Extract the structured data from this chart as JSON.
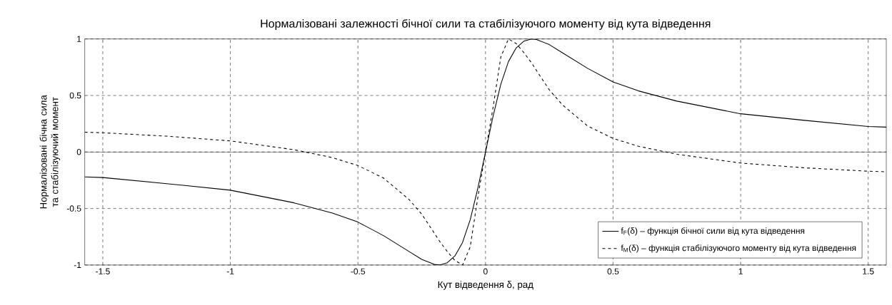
{
  "chart_data": {
    "type": "line",
    "title": "Нормалізовані залежності бічної сили та стабілізуючого моменту від кута відведення",
    "xlabel": "Кут відведення δ, рад",
    "ylabel": "Нормалізовані бічна сила та стабілізуючий момент",
    "x": [
      -1.5708,
      -1.5,
      -1.25,
      -1,
      -0.75,
      -0.6,
      -0.5,
      -0.4,
      -0.3,
      -0.25,
      -0.2,
      -0.18,
      -0.15,
      -0.12,
      -0.09,
      -0.06,
      -0.03,
      0,
      0.03,
      0.06,
      0.09,
      0.12,
      0.15,
      0.18,
      0.2,
      0.25,
      0.3,
      0.4,
      0.5,
      0.6,
      0.75,
      1,
      1.25,
      1.5,
      1.5708
    ],
    "series": [
      {
        "name": "f$_{F}$(δ) – функція бічної сили від кута відведення",
        "color": "#000000",
        "line_style": "solid",
        "values": [
          -0.22,
          -0.226,
          -0.28,
          -0.338,
          -0.45,
          -0.54,
          -0.62,
          -0.74,
          -0.88,
          -0.95,
          -0.995,
          -1,
          -0.98,
          -0.92,
          -0.8,
          -0.6,
          -0.32,
          0,
          0.32,
          0.6,
          0.8,
          0.92,
          0.98,
          1,
          0.995,
          0.95,
          0.88,
          0.74,
          0.62,
          0.54,
          0.45,
          0.338,
          0.28,
          0.226,
          0.22
        ]
      },
      {
        "name": "f$_{M}$(δ) – функція стабілізуючого моменту від кута відведення",
        "color": "#000000",
        "line_style": "dashed",
        "values": [
          0.175,
          0.17,
          0.14,
          0.098,
          0.02,
          -0.05,
          -0.12,
          -0.23,
          -0.42,
          -0.55,
          -0.72,
          -0.79,
          -0.88,
          -0.96,
          -1,
          -0.84,
          -0.4,
          0,
          0.4,
          0.84,
          1,
          0.96,
          0.88,
          0.79,
          0.72,
          0.55,
          0.42,
          0.23,
          0.12,
          0.05,
          -0.02,
          -0.098,
          -0.14,
          -0.17,
          -0.175
        ]
      }
    ],
    "xlim": [
      -1.5708,
      1.5708
    ],
    "ylim": [
      -1,
      1
    ],
    "xticks": [
      -1.5,
      -1,
      -0.5,
      0,
      0.5,
      1,
      1.5
    ],
    "yticks": [
      -1,
      -0.5,
      0,
      0.5,
      1
    ],
    "ref_lines": [
      {
        "axis": "y",
        "value": 0,
        "color": "#000000",
        "line_style": "solid"
      }
    ],
    "grid": true,
    "legend": "bottom right",
    "marker": "none"
  }
}
